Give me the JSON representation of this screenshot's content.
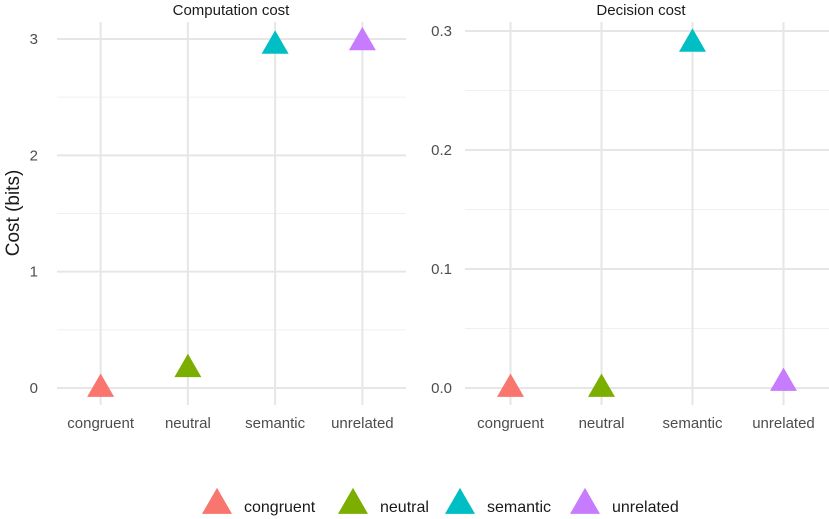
{
  "colors": {
    "congruent": "#F8766D",
    "neutral": "#7CAE00",
    "semantic": "#00BFC4",
    "unrelated": "#C77CFF"
  },
  "ylabel": "Cost (bits)",
  "chart_data": [
    {
      "type": "scatter",
      "title": "Computation cost",
      "categories": [
        "congruent",
        "neutral",
        "semantic",
        "unrelated"
      ],
      "values": [
        0.0,
        0.17,
        2.95,
        2.98
      ],
      "ylim": [
        0,
        3
      ],
      "yticks": [
        0,
        1,
        2,
        3
      ],
      "ytick_labels": [
        "0",
        "1",
        "2",
        "3"
      ],
      "ylabel": "Cost (bits)"
    },
    {
      "type": "scatter",
      "title": "Decision cost",
      "categories": [
        "congruent",
        "neutral",
        "semantic",
        "unrelated"
      ],
      "values": [
        0.0,
        0.0,
        0.29,
        0.005
      ],
      "ylim": [
        0,
        0.3
      ],
      "yticks": [
        0.0,
        0.1,
        0.2,
        0.3
      ],
      "ytick_labels": [
        "0.0",
        "0.1",
        "0.2",
        "0.3"
      ],
      "ylabel": ""
    }
  ],
  "legend": {
    "position": "bottom",
    "items": [
      {
        "label": "congruent",
        "color": "#F8766D"
      },
      {
        "label": "neutral",
        "color": "#7CAE00"
      },
      {
        "label": "semantic",
        "color": "#00BFC4"
      },
      {
        "label": "unrelated",
        "color": "#C77CFF"
      }
    ]
  }
}
